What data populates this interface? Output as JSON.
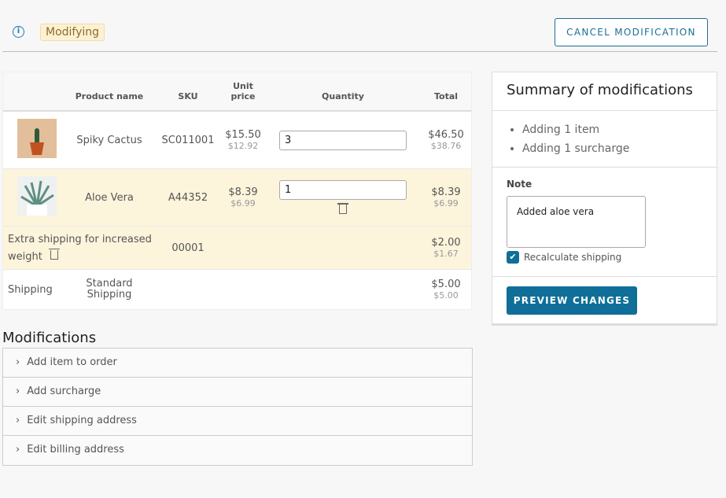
{
  "header": {
    "status_badge": "Modifying",
    "cancel_label": "CANCEL MODIFICATION",
    "info_icon": "info-icon"
  },
  "table": {
    "headers": [
      "Product name",
      "SKU",
      "Unit price",
      "Quantity",
      "Total"
    ],
    "rows": [
      {
        "name": "Spiky Cactus",
        "sku": "SC011001",
        "unit_price": "$15.50",
        "unit_price_ex": "$12.92",
        "quantity": "3",
        "total": "$46.50",
        "total_ex": "$38.76"
      },
      {
        "name": "Aloe Vera",
        "sku": "A44352",
        "unit_price": "$8.39",
        "unit_price_ex": "$6.99",
        "quantity": "1",
        "total": "$8.39",
        "total_ex": "$6.99"
      }
    ],
    "surcharge": {
      "name": "Extra shipping for increased weight",
      "sku": "00001",
      "total": "$2.00",
      "total_ex": "$1.67"
    },
    "shipping": {
      "label": "Shipping",
      "method": "Standard Shipping",
      "total": "$5.00",
      "total_ex": "$5.00"
    },
    "highlight_color": "#fdf4dc"
  },
  "modifications": {
    "title": "Modifications",
    "items": [
      "Add item to order",
      "Add surcharge",
      "Edit shipping address",
      "Edit billing address"
    ]
  },
  "summary": {
    "title": "Summary of modifications",
    "items": [
      "Adding 1 item",
      "Adding 1 surcharge"
    ],
    "note_label": "Note",
    "note_value": "Added aloe vera",
    "recalc_label": "Recalculate shipping",
    "recalc_checked": true,
    "preview_label": "PREVIEW CHANGES",
    "accent": "#0f6f98"
  }
}
